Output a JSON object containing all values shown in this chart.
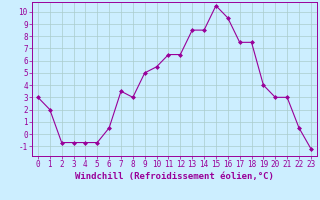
{
  "x": [
    0,
    1,
    2,
    3,
    4,
    5,
    6,
    7,
    8,
    9,
    10,
    11,
    12,
    13,
    14,
    15,
    16,
    17,
    18,
    19,
    20,
    21,
    22,
    23
  ],
  "y": [
    3.0,
    2.0,
    -0.7,
    -0.7,
    -0.7,
    -0.7,
    0.5,
    3.5,
    3.0,
    5.0,
    5.5,
    6.5,
    6.5,
    8.5,
    8.5,
    10.5,
    9.5,
    7.5,
    7.5,
    4.0,
    3.0,
    3.0,
    0.5,
    -1.2
  ],
  "line_color": "#990099",
  "marker": "D",
  "marker_size": 2,
  "bg_color": "#cceeff",
  "grid_color": "#aacccc",
  "xlabel": "Windchill (Refroidissement éolien,°C)",
  "ylim": [
    -1.8,
    10.8
  ],
  "xlim": [
    -0.5,
    23.5
  ],
  "yticks": [
    -1,
    0,
    1,
    2,
    3,
    4,
    5,
    6,
    7,
    8,
    9,
    10
  ],
  "xticks": [
    0,
    1,
    2,
    3,
    4,
    5,
    6,
    7,
    8,
    9,
    10,
    11,
    12,
    13,
    14,
    15,
    16,
    17,
    18,
    19,
    20,
    21,
    22,
    23
  ],
  "tick_color": "#990099",
  "axis_color": "#990099",
  "label_fontsize": 6.5,
  "tick_fontsize": 5.5
}
